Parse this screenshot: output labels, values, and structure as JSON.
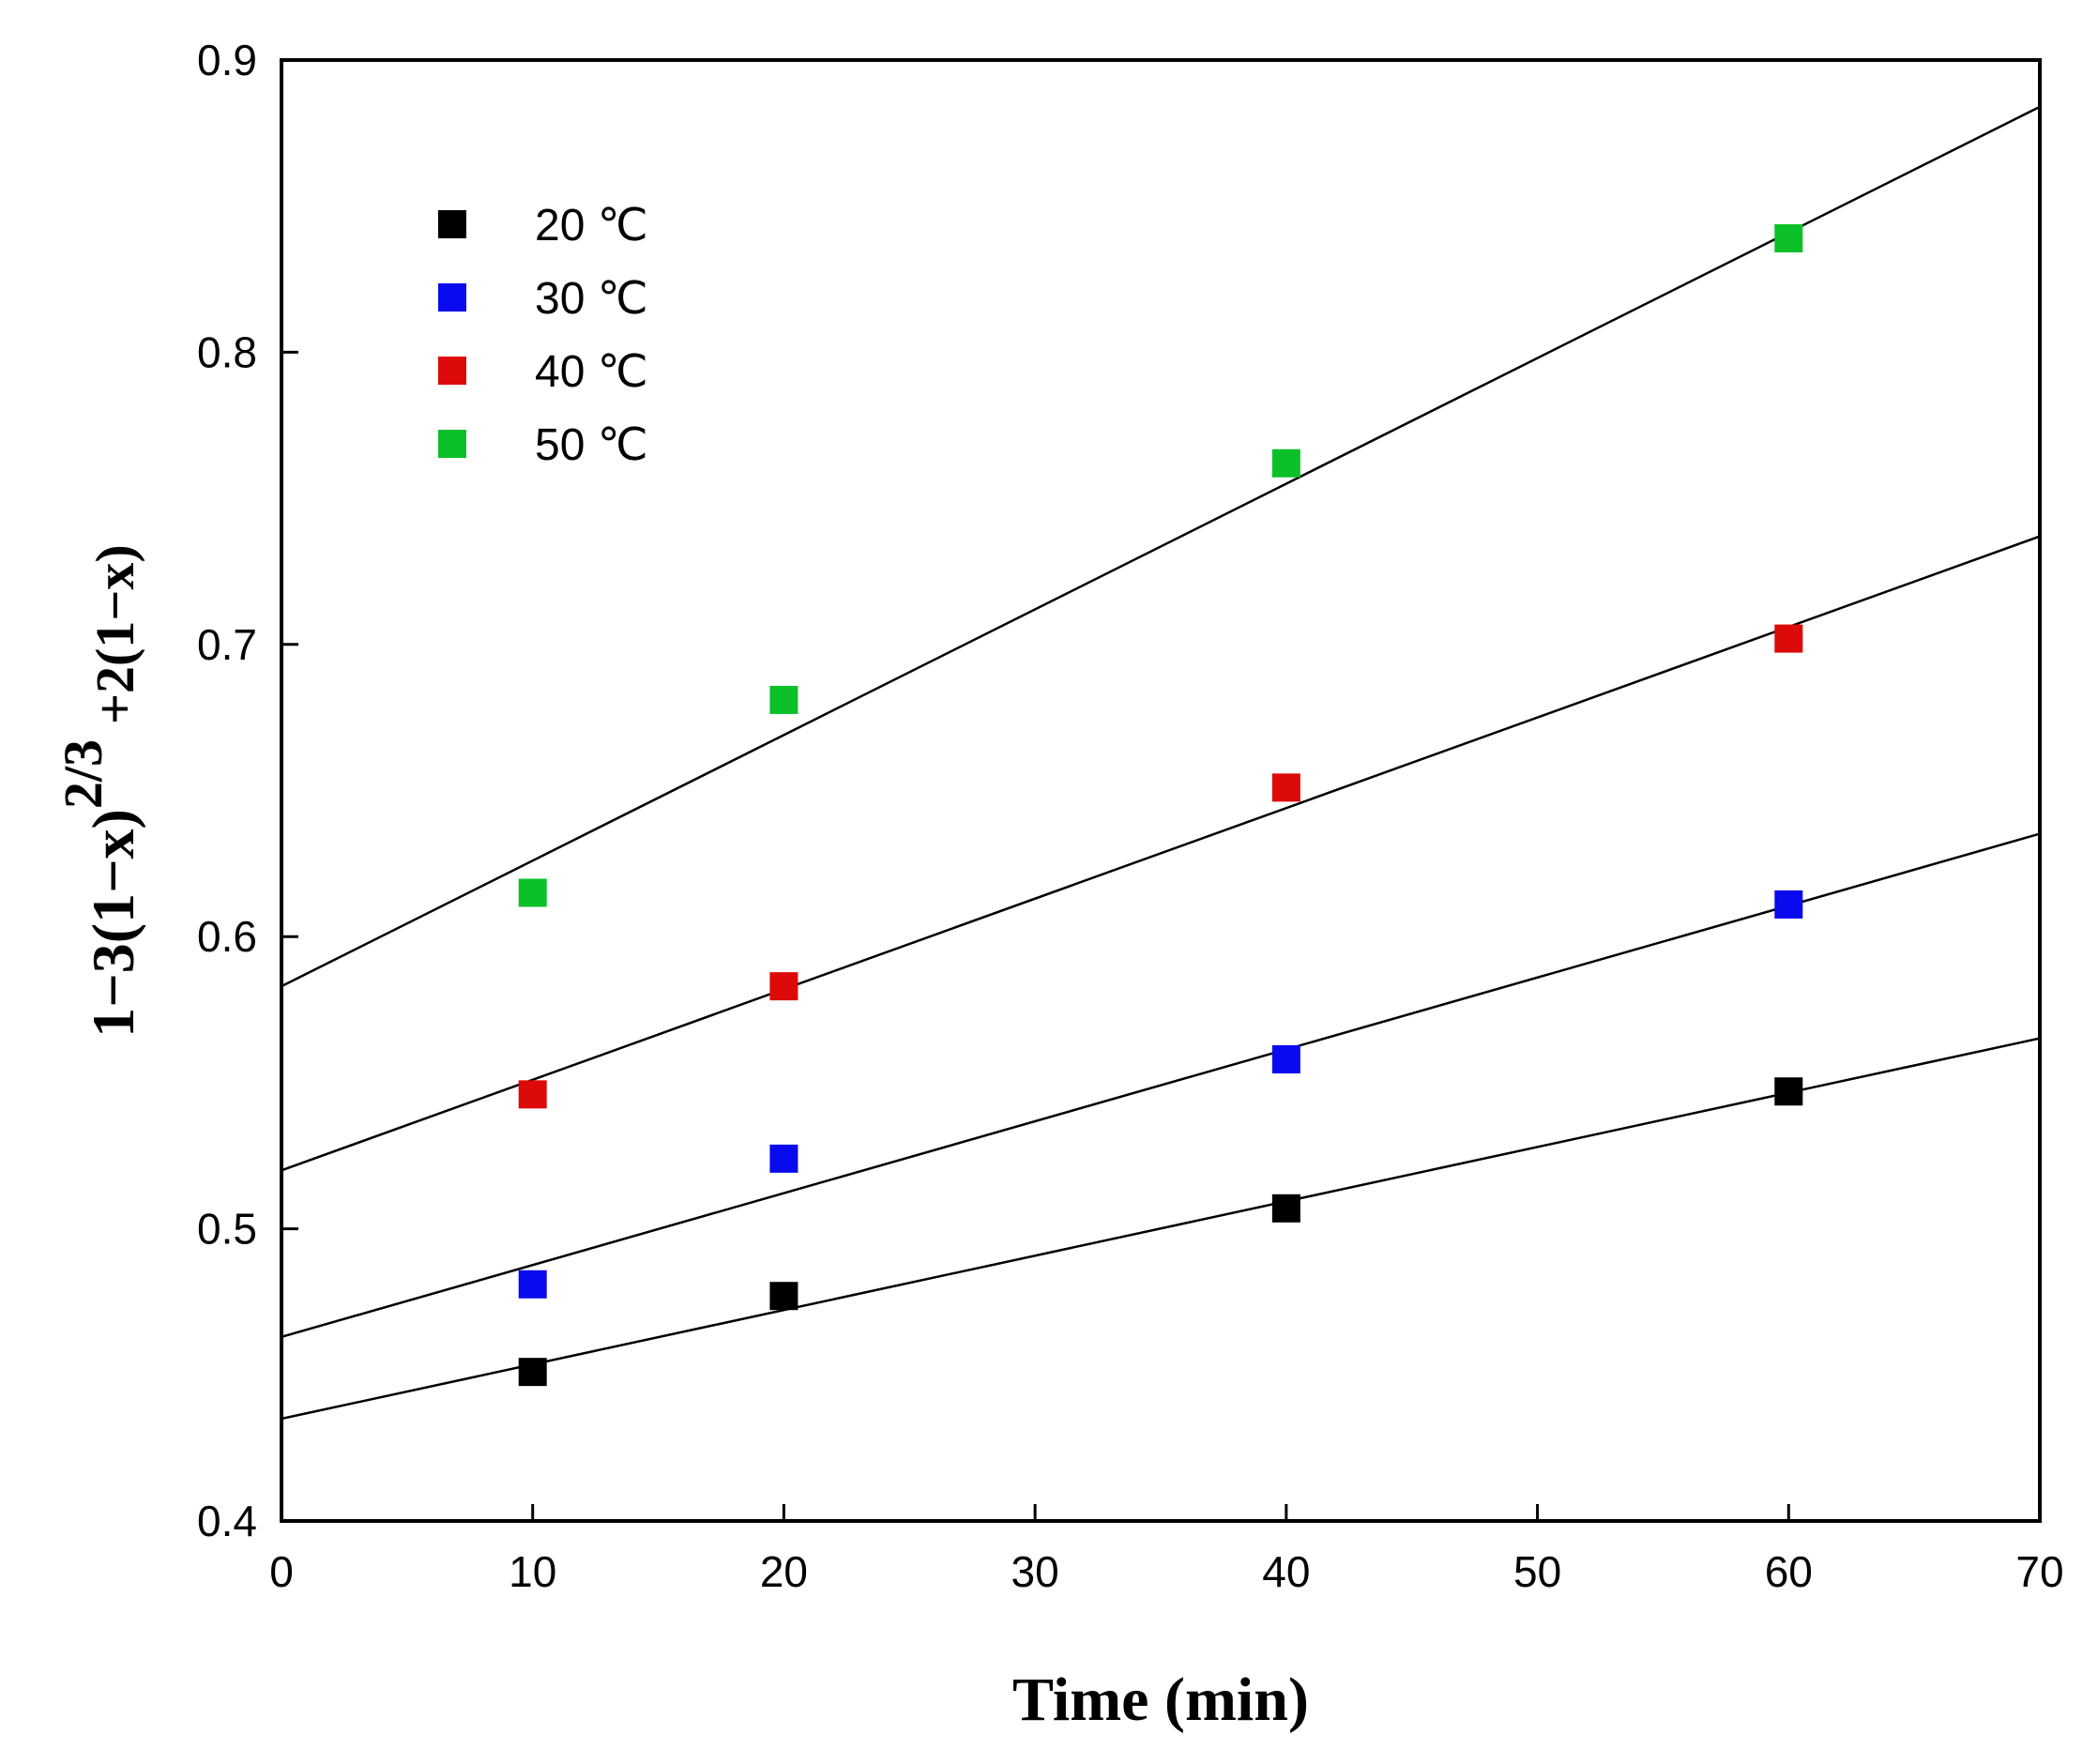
{
  "chart_data": {
    "type": "scatter",
    "title": "",
    "xlabel": "Time (min)",
    "ylabel": {
      "part1": "1−3(1−x)",
      "superscript": "2/3",
      "part2": "+2(1−x)"
    },
    "xlim": [
      0,
      70
    ],
    "ylim": [
      0.4,
      0.9
    ],
    "xticks": [
      0,
      10,
      20,
      30,
      40,
      50,
      60,
      70
    ],
    "yticks": [
      0.4,
      0.5,
      0.6,
      0.7,
      0.8,
      0.9
    ],
    "xtick_labels": [
      "0",
      "10",
      "20",
      "30",
      "40",
      "50",
      "60",
      "70"
    ],
    "ytick_labels": [
      "0.4",
      "0.5",
      "0.6",
      "0.7",
      "0.8",
      "0.9"
    ],
    "grid": false,
    "legend_position": "top-left",
    "series": [
      {
        "name": "20 ℃",
        "color": "#000000",
        "x": [
          10,
          20,
          40,
          60
        ],
        "y": [
          0.451,
          0.477,
          0.507,
          0.547
        ],
        "fit": {
          "intercept": 0.435,
          "slope": 0.00186
        }
      },
      {
        "name": "30 ℃",
        "color": "#0a0aee",
        "x": [
          10,
          20,
          40,
          60
        ],
        "y": [
          0.481,
          0.524,
          0.558,
          0.611
        ],
        "fit": {
          "intercept": 0.463,
          "slope": 0.00246
        }
      },
      {
        "name": "40 ℃",
        "color": "#dd0a0a",
        "x": [
          10,
          20,
          40,
          60
        ],
        "y": [
          0.546,
          0.583,
          0.651,
          0.702
        ],
        "fit": {
          "intercept": 0.52,
          "slope": 0.0031
        }
      },
      {
        "name": "50 ℃",
        "color": "#0cc02a",
        "x": [
          10,
          20,
          40,
          60
        ],
        "y": [
          0.615,
          0.681,
          0.762,
          0.839
        ],
        "fit": {
          "intercept": 0.583,
          "slope": 0.0043
        }
      }
    ]
  }
}
